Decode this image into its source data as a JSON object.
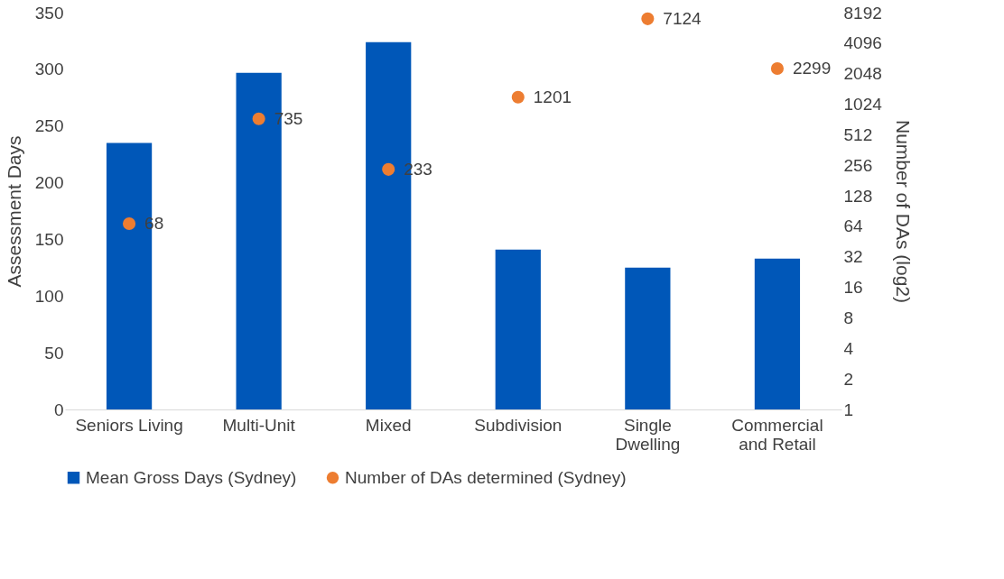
{
  "chart_data": {
    "type": "bar",
    "categories": [
      "Seniors Living",
      "Multi-Unit",
      "Mixed",
      "Subdivision",
      "Single\nDwelling",
      "Commercial\nand Retail"
    ],
    "ylabel": "Assessment Days",
    "y2label": "Number of DAs (log2)",
    "ylim": [
      0,
      350
    ],
    "yticks": [
      0,
      50,
      100,
      150,
      200,
      250,
      300,
      350
    ],
    "y2lim": [
      1,
      8192
    ],
    "y2ticks": [
      1,
      2,
      4,
      8,
      16,
      32,
      64,
      128,
      256,
      512,
      1024,
      2048,
      4096,
      8192
    ],
    "log": "y2",
    "series": [
      {
        "name": "Mean Gross Days (Sydney)",
        "color": "#0057b8",
        "values": [
          235,
          297,
          324,
          141,
          125,
          133
        ]
      },
      {
        "name": "Number of DAs determined (Sydney)",
        "color": "#ed7d31",
        "type": "scatter",
        "axis": "y2",
        "marker": "circle",
        "data_labels": true,
        "values": [
          68,
          735,
          233,
          1201,
          7124,
          2299
        ]
      }
    ],
    "grid": false,
    "legend": "bottom"
  }
}
